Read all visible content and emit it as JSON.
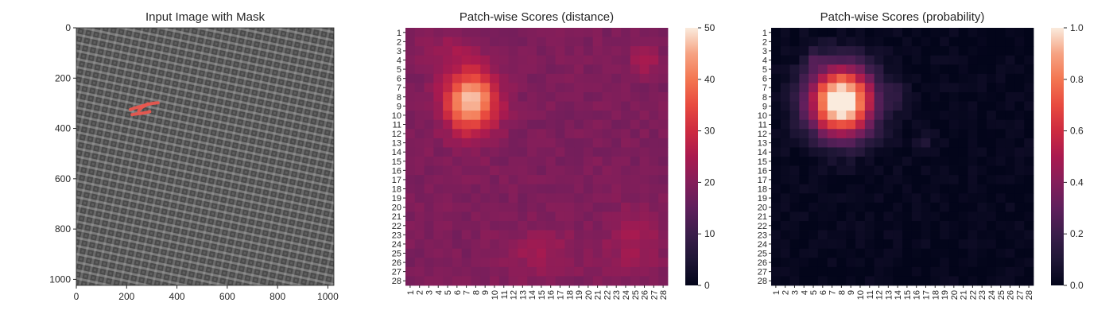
{
  "chart_data": [
    {
      "type": "image",
      "title": "Input Image with Mask",
      "x_ticks": [
        "0",
        "200",
        "400",
        "600",
        "800",
        "1000"
      ],
      "y_ticks": [
        "0",
        "200",
        "400",
        "600",
        "800",
        "1000"
      ],
      "xlim": [
        0,
        1024
      ],
      "ylim": [
        1024,
        0
      ],
      "mask_color": "#e8574f",
      "image_color": "#5a5a5a",
      "mask_strokes": [
        [
          [
            215,
            325
          ],
          [
            235,
            318
          ],
          [
            258,
            312
          ],
          [
            280,
            305
          ],
          [
            305,
            300
          ],
          [
            325,
            298
          ]
        ],
        [
          [
            222,
            345
          ],
          [
            240,
            342
          ],
          [
            258,
            340
          ],
          [
            278,
            337
          ],
          [
            292,
            333
          ]
        ],
        [
          [
            248,
            330
          ],
          [
            258,
            318
          ],
          [
            272,
            310
          ],
          [
            285,
            302
          ]
        ]
      ]
    },
    {
      "type": "heatmap",
      "title": "Patch-wise Scores (distance)",
      "colormap": "rocket",
      "rows": 28,
      "cols": 28,
      "row_labels": [
        "1",
        "2",
        "3",
        "4",
        "5",
        "6",
        "7",
        "8",
        "9",
        "10",
        "11",
        "12",
        "13",
        "14",
        "15",
        "16",
        "17",
        "18",
        "19",
        "20",
        "21",
        "22",
        "23",
        "24",
        "25",
        "26",
        "27",
        "28"
      ],
      "col_labels": [
        "1",
        "2",
        "3",
        "4",
        "5",
        "6",
        "7",
        "8",
        "9",
        "10",
        "11",
        "12",
        "13",
        "14",
        "15",
        "16",
        "17",
        "18",
        "19",
        "20",
        "21",
        "22",
        "23",
        "24",
        "25",
        "26",
        "27",
        "28"
      ],
      "vmin": 0,
      "vmax": 50,
      "colorbar_ticks": [
        "0",
        "10",
        "20",
        "30",
        "40",
        "50"
      ],
      "background_value": 19,
      "hotspots": [
        {
          "row": 8.5,
          "col": 7.5,
          "sigma_row": 2.3,
          "sigma_col": 1.9,
          "amplitude": 29
        },
        {
          "row": 4,
          "col": 26,
          "sigma_row": 1.0,
          "sigma_col": 1.0,
          "amplitude": 7
        },
        {
          "row": 24,
          "col": 25,
          "sigma_row": 2.5,
          "sigma_col": 2.0,
          "amplitude": 5
        },
        {
          "row": 25,
          "col": 15,
          "sigma_row": 2.0,
          "sigma_col": 3.0,
          "amplitude": 4
        },
        {
          "row": 3,
          "col": 5,
          "sigma_row": 1.5,
          "sigma_col": 2.5,
          "amplitude": 4
        }
      ]
    },
    {
      "type": "heatmap",
      "title": "Patch-wise Scores (probability)",
      "colormap": "rocket",
      "rows": 28,
      "cols": 28,
      "row_labels": [
        "1",
        "2",
        "3",
        "4",
        "5",
        "6",
        "7",
        "8",
        "9",
        "10",
        "11",
        "12",
        "13",
        "14",
        "15",
        "16",
        "17",
        "18",
        "19",
        "20",
        "21",
        "22",
        "23",
        "24",
        "25",
        "26",
        "27",
        "28"
      ],
      "col_labels": [
        "1",
        "2",
        "3",
        "4",
        "5",
        "6",
        "7",
        "8",
        "9",
        "10",
        "11",
        "12",
        "13",
        "14",
        "15",
        "16",
        "17",
        "18",
        "19",
        "20",
        "21",
        "22",
        "23",
        "24",
        "25",
        "26",
        "27",
        "28"
      ],
      "vmin": 0,
      "vmax": 1,
      "colorbar_ticks": [
        "0.0",
        "0.2",
        "0.4",
        "0.6",
        "0.8",
        "1.0"
      ],
      "background_value": 0.01,
      "hotspots": [
        {
          "row": 8.5,
          "col": 8,
          "sigma_row": 2.6,
          "sigma_col": 2.4,
          "amplitude": 1.15
        },
        {
          "row": 8,
          "col": 14,
          "sigma_row": 1.0,
          "sigma_col": 0.8,
          "amplitude": 0.1
        },
        {
          "row": 13,
          "col": 17,
          "sigma_row": 0.7,
          "sigma_col": 0.7,
          "amplitude": 0.08
        },
        {
          "row": 4,
          "col": 5,
          "sigma_row": 0.7,
          "sigma_col": 0.7,
          "amplitude": 0.15
        }
      ]
    }
  ]
}
